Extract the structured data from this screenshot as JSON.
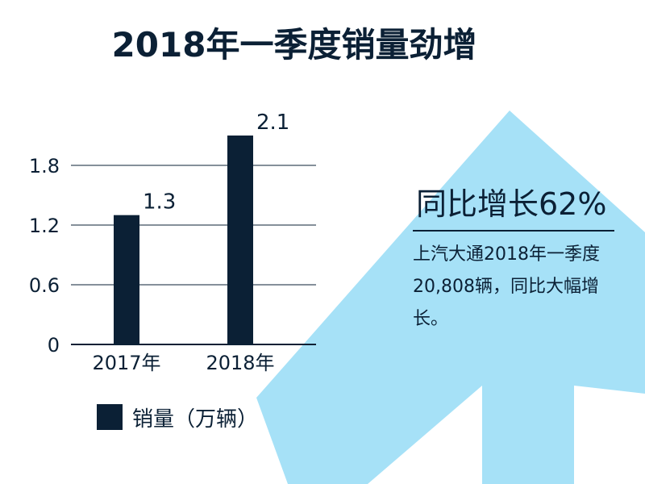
{
  "title": "2018年一季度销量劲增",
  "colors": {
    "bar": "#0b2035",
    "arrow": "#a6e1f7",
    "text": "#0b2035",
    "grid": "#0b2035"
  },
  "callout": {
    "headline": "同比增长62%",
    "body": "上汽大通2018年一季度20,808辆，同比大幅增长。"
  },
  "legend": {
    "label": "销量（万辆）"
  },
  "chart_data": {
    "type": "bar",
    "categories": [
      "2017年",
      "2018年"
    ],
    "series": [
      {
        "name": "销量（万辆）",
        "values": [
          1.3,
          2.1
        ]
      }
    ],
    "data_labels": [
      "1.3",
      "2.1"
    ],
    "yticks": [
      0,
      0.6,
      1.2,
      1.8
    ],
    "ytick_labels": [
      "0",
      "0.6",
      "1.2",
      "1.8"
    ],
    "ylim": [
      0,
      2.1
    ],
    "xlabel": "",
    "ylabel": "",
    "grid": true,
    "legend_position": "bottom-left"
  }
}
